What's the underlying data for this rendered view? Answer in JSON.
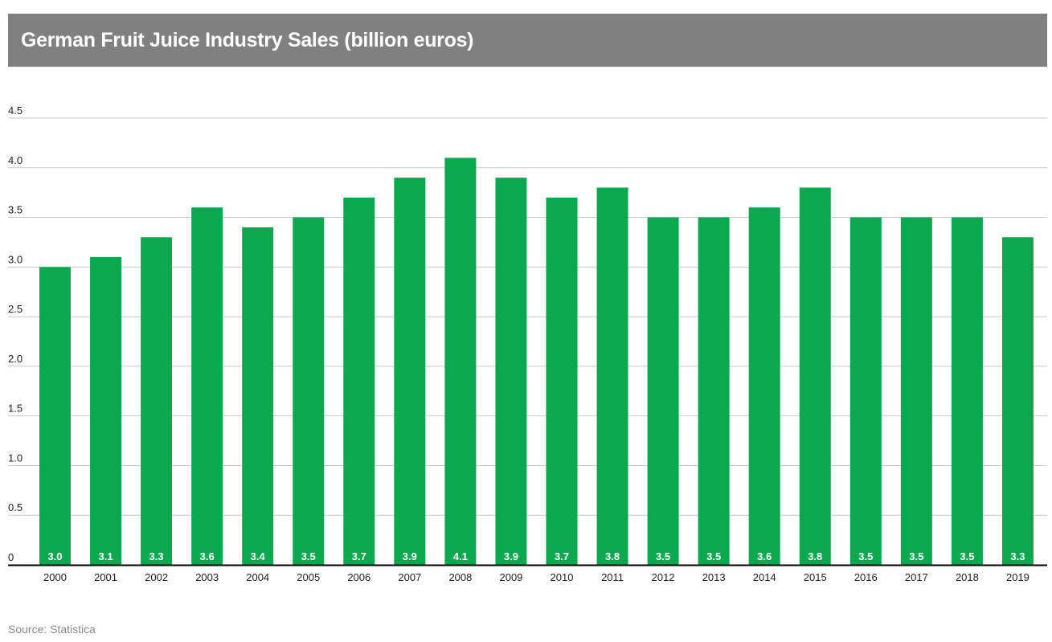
{
  "header": {
    "title": "German Fruit Juice Industry Sales (billion euros)"
  },
  "footer": {
    "source": "Source: Statistica"
  },
  "colors": {
    "bar": "#0aa84f",
    "title_bg": "#808080",
    "title_text": "#ffffff",
    "grid": "#c8c8c8",
    "axis": "#000000",
    "tick_text": "#222222",
    "data_label": "#ffffff"
  },
  "chart_data": {
    "type": "bar",
    "title": "German Fruit Juice Industry Sales (billion euros)",
    "xlabel": "",
    "ylabel": "",
    "categories": [
      "2000",
      "2001",
      "2002",
      "2003",
      "2004",
      "2005",
      "2006",
      "2007",
      "2008",
      "2009",
      "2010",
      "2011",
      "2012",
      "2013",
      "2014",
      "2015",
      "2016",
      "2017",
      "2018",
      "2019"
    ],
    "values": [
      3.0,
      3.1,
      3.3,
      3.6,
      3.4,
      3.5,
      3.7,
      3.9,
      4.1,
      3.9,
      3.7,
      3.8,
      3.5,
      3.5,
      3.6,
      3.8,
      3.5,
      3.5,
      3.5,
      3.3
    ],
    "data_labels": [
      "3.0",
      "3.1",
      "3.3",
      "3.6",
      "3.4",
      "3.5",
      "3.7",
      "3.9",
      "4.1",
      "3.9",
      "3.7",
      "3.8",
      "3.5",
      "3.5",
      "3.6",
      "3.8",
      "3.5",
      "3.5",
      "3.5",
      "3.3"
    ],
    "ylim": [
      0,
      4.5
    ],
    "yticks": [
      0,
      0.5,
      1.0,
      1.5,
      2.0,
      2.5,
      3.0,
      3.5,
      4.0,
      4.5
    ],
    "ytick_labels": [
      "0",
      "0.5",
      "1.0",
      "1.5",
      "2.0",
      "2.5",
      "3.0",
      "3.5",
      "4.0",
      "4.5"
    ],
    "grid": true,
    "legend": "none"
  }
}
